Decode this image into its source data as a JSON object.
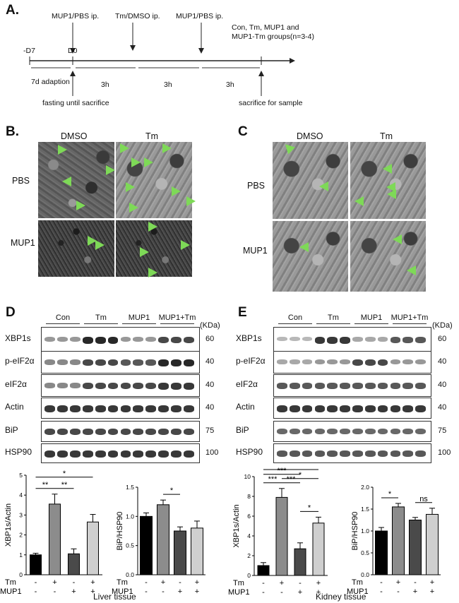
{
  "panel_A": {
    "label": "A.",
    "top_labels": [
      "MUP1/PBS ip.",
      "Tm/DMSO ip.",
      "MUP1/PBS ip.",
      "Con, Tm, MUP1 and",
      "MUP1-Tm groups(n=3-4)"
    ],
    "day_labels": [
      "-D7",
      "D0"
    ],
    "interval_labels": [
      "7d adaption",
      "3h",
      "3h",
      "3h"
    ],
    "bottom_labels": [
      "fasting until sacrifice",
      "sacrifice for sample"
    ]
  },
  "panel_B": {
    "label": "B.",
    "columns": [
      "DMSO",
      "Tm"
    ],
    "rows": [
      "PBS",
      "MUP1"
    ]
  },
  "panel_C": {
    "label": "C",
    "columns": [
      "DMSO",
      "Tm"
    ],
    "rows": [
      "PBS",
      "MUP1"
    ]
  },
  "panel_D": {
    "label": "D",
    "groups": [
      "Con",
      "Tm",
      "MUP1",
      "MUP1+Tm"
    ],
    "kda_header": "(KDa)",
    "rows": [
      {
        "protein": "XBP1s",
        "kda": "60"
      },
      {
        "protein": "p-eIF2α",
        "kda": "40"
      },
      {
        "protein": "eIF2α",
        "kda": "40"
      },
      {
        "protein": "Actin",
        "kda": "40"
      },
      {
        "protein": "BiP",
        "kda": "75"
      },
      {
        "protein": "HSP90",
        "kda": "100"
      }
    ],
    "caption": "Liver tissue"
  },
  "panel_E": {
    "label": "E",
    "groups": [
      "Con",
      "Tm",
      "MUP1",
      "MUP1+Tm"
    ],
    "kda_header": "(KDa)",
    "rows": [
      {
        "protein": "XBP1s",
        "kda": "60"
      },
      {
        "protein": "p-eIF2α",
        "kda": "40"
      },
      {
        "protein": "eIF2α",
        "kda": "40"
      },
      {
        "protein": "Actin",
        "kda": "40"
      },
      {
        "protein": "BiP",
        "kda": "75"
      },
      {
        "protein": "HSP90",
        "kda": "100"
      }
    ],
    "caption": "Kidney tissue"
  },
  "treatment_rows": {
    "tm": "Tm",
    "mup1": "MUP1",
    "signs_tm": [
      "-",
      "+",
      "-",
      "+"
    ],
    "signs_mup1": [
      "-",
      "-",
      "+",
      "+"
    ]
  },
  "chart_data": [
    {
      "type": "bar",
      "id": "liver_xbp1s",
      "ylabel": "XBP1s/Actin",
      "categories": [
        "Con",
        "Tm",
        "MUP1",
        "MUP1+Tm"
      ],
      "values": [
        1.0,
        3.55,
        1.05,
        2.65
      ],
      "errors": [
        0.08,
        0.5,
        0.25,
        0.38
      ],
      "ylim": [
        0,
        5
      ],
      "yticks": [
        "0",
        "1",
        "2",
        "3",
        "4",
        "5"
      ],
      "colors": [
        "#000000",
        "#8c8c8c",
        "#4a4a4a",
        "#cfcfcf"
      ],
      "significance": [
        {
          "pair": [
            0,
            1
          ],
          "label": "**"
        },
        {
          "pair": [
            1,
            2
          ],
          "label": "**"
        },
        {
          "pair": [
            0,
            3
          ],
          "label": "*"
        }
      ]
    },
    {
      "type": "bar",
      "id": "liver_bip",
      "ylabel": "BiP/HSP90",
      "categories": [
        "Con",
        "Tm",
        "MUP1",
        "MUP1+Tm"
      ],
      "values": [
        1.0,
        1.2,
        0.75,
        0.8
      ],
      "errors": [
        0.06,
        0.08,
        0.07,
        0.12
      ],
      "ylim": [
        0,
        1.5
      ],
      "yticks": [
        "0.0",
        "0.5",
        "1.0",
        "1.5"
      ],
      "colors": [
        "#000000",
        "#8c8c8c",
        "#4a4a4a",
        "#cfcfcf"
      ],
      "significance": [
        {
          "pair": [
            1,
            2
          ],
          "label": "*"
        }
      ]
    },
    {
      "type": "bar",
      "id": "kidney_xbp1s",
      "ylabel": "XBP1s/Actin",
      "categories": [
        "Con",
        "Tm",
        "MUP1",
        "MUP1+Tm"
      ],
      "values": [
        1.0,
        7.9,
        2.7,
        5.3
      ],
      "errors": [
        0.3,
        0.9,
        0.6,
        0.6
      ],
      "ylim": [
        0,
        10
      ],
      "yticks": [
        "0",
        "2",
        "4",
        "6",
        "8",
        "10"
      ],
      "colors": [
        "#000000",
        "#8c8c8c",
        "#4a4a4a",
        "#cfcfcf"
      ],
      "significance": [
        {
          "pair": [
            0,
            1
          ],
          "label": "***"
        },
        {
          "pair": [
            1,
            2
          ],
          "label": "***"
        },
        {
          "pair": [
            0,
            2
          ],
          "label": "***"
        },
        {
          "pair": [
            2,
            3
          ],
          "label": "*"
        },
        {
          "pair": [
            0,
            3
          ],
          "label": "***"
        },
        {
          "pair": [
            1,
            3
          ],
          "label": "*"
        }
      ]
    },
    {
      "type": "bar",
      "id": "kidney_bip",
      "ylabel": "BiP/HSP90",
      "categories": [
        "Con",
        "Tm",
        "MUP1",
        "MUP1+Tm"
      ],
      "values": [
        1.0,
        1.55,
        1.25,
        1.38
      ],
      "errors": [
        0.08,
        0.08,
        0.06,
        0.14
      ],
      "ylim": [
        0,
        2.0
      ],
      "yticks": [
        "0.0",
        "0.5",
        "1.0",
        "1.5",
        "2.0"
      ],
      "colors": [
        "#000000",
        "#8c8c8c",
        "#4a4a4a",
        "#cfcfcf"
      ],
      "significance": [
        {
          "pair": [
            0,
            1
          ],
          "label": "*"
        },
        {
          "pair": [
            2,
            3
          ],
          "label": "ns"
        }
      ]
    }
  ]
}
